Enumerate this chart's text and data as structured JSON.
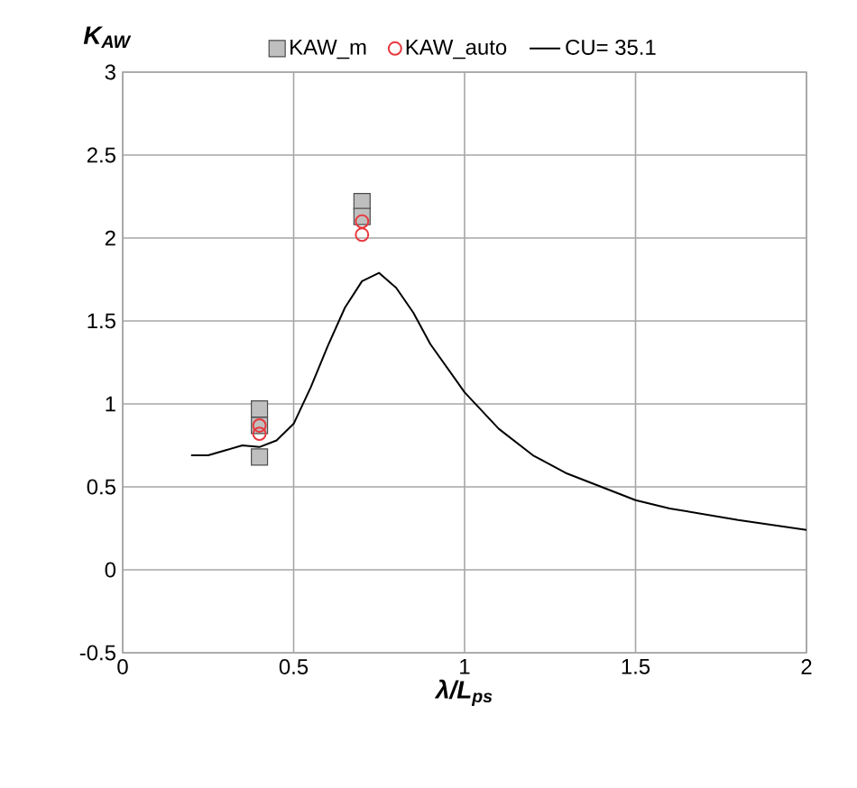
{
  "chart_data": {
    "type": "line",
    "xlabel": "λ/L$_{ps}$",
    "ylabel": "K$_{AW}$",
    "xlim": [
      0,
      2
    ],
    "ylim": [
      -0.5,
      3
    ],
    "xticks": [
      0,
      0.5,
      1,
      1.5,
      2
    ],
    "yticks": [
      -0.5,
      0,
      0.5,
      1,
      1.5,
      2,
      2.5,
      3
    ],
    "grid": true,
    "legend": "top",
    "series": [
      {
        "name": "KAW_m",
        "type": "scatter",
        "marker": "square",
        "color": "#bfbfbf",
        "x": [
          0.4,
          0.4,
          0.4,
          0.7,
          0.7
        ],
        "values": [
          0.97,
          0.87,
          0.68,
          2.22,
          2.13
        ]
      },
      {
        "name": "KAW_auto",
        "type": "scatter",
        "marker": "circle",
        "color": "#e8383d",
        "x": [
          0.4,
          0.4,
          0.7,
          0.7
        ],
        "values": [
          0.87,
          0.82,
          2.1,
          2.02
        ]
      },
      {
        "name": "CU= 35.1",
        "marker": "none",
        "color": "#000000",
        "x": [
          0.2,
          0.25,
          0.3,
          0.35,
          0.4,
          0.45,
          0.5,
          0.55,
          0.6,
          0.65,
          0.7,
          0.75,
          0.8,
          0.85,
          0.9,
          1.0,
          1.1,
          1.2,
          1.3,
          1.4,
          1.5,
          1.6,
          1.8,
          2.0
        ],
        "values": [
          0.69,
          0.69,
          0.72,
          0.75,
          0.74,
          0.78,
          0.88,
          1.1,
          1.35,
          1.58,
          1.74,
          1.79,
          1.7,
          1.55,
          1.36,
          1.07,
          0.85,
          0.69,
          0.58,
          0.5,
          0.42,
          0.37,
          0.3,
          0.24
        ]
      }
    ]
  }
}
